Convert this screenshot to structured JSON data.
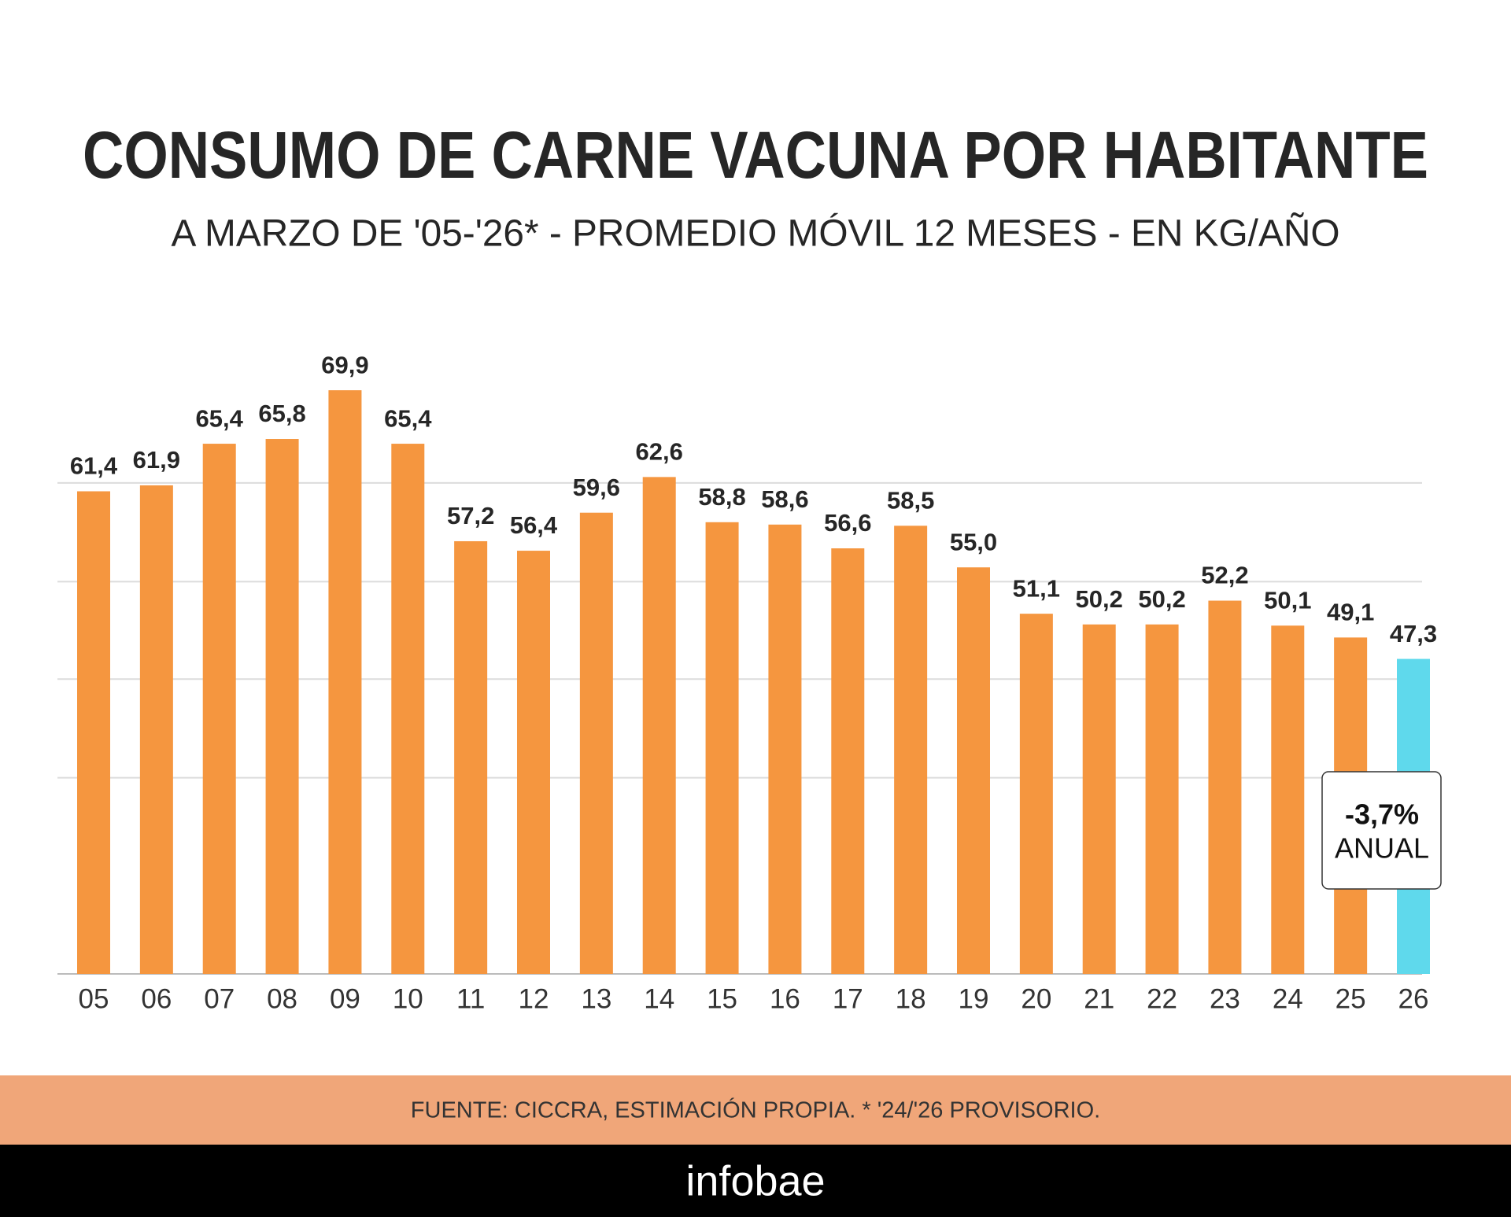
{
  "chart_data": {
    "type": "bar",
    "title": "CONSUMO DE CARNE VACUNA POR HABITANTE",
    "subtitle": "A MARZO DE '05-'26* - PROMEDIO MÓVIL 12 MESES - EN KG/AÑO",
    "categories": [
      "05",
      "06",
      "07",
      "08",
      "09",
      "10",
      "11",
      "12",
      "13",
      "14",
      "15",
      "16",
      "17",
      "18",
      "19",
      "20",
      "21",
      "22",
      "23",
      "24",
      "25",
      "26"
    ],
    "values": [
      61.4,
      61.9,
      65.4,
      65.8,
      69.9,
      65.4,
      57.2,
      56.4,
      59.6,
      62.6,
      58.8,
      58.6,
      56.6,
      58.5,
      55.0,
      51.1,
      50.2,
      50.2,
      52.2,
      50.1,
      49.1,
      47.3
    ],
    "value_labels": [
      "61,4",
      "61,9",
      "65,4",
      "65,8",
      "69,9",
      "65,4",
      "57,2",
      "56,4",
      "59,6",
      "62,6",
      "58,8",
      "58,6",
      "56,6",
      "58,5",
      "55,0",
      "51,1",
      "50,2",
      "50,2",
      "52,2",
      "50,1",
      "49,1",
      "47,3"
    ],
    "colors": [
      "#f5963f",
      "#f5963f",
      "#f5963f",
      "#f5963f",
      "#f5963f",
      "#f5963f",
      "#f5963f",
      "#f5963f",
      "#f5963f",
      "#f5963f",
      "#f5963f",
      "#f5963f",
      "#f5963f",
      "#f5963f",
      "#f5963f",
      "#f5963f",
      "#f5963f",
      "#f5963f",
      "#f5963f",
      "#f5963f",
      "#f5963f",
      "#5fd9ec"
    ],
    "ylim": [
      20.8,
      75
    ],
    "yticks": [
      37.3,
      45.6,
      53.8,
      62.1
    ],
    "grid": true,
    "annotation": {
      "value_label": "-3,7%",
      "text": "ANUAL"
    },
    "source": "FUENTE: CICCRA, ESTIMACIÓN PROPIA. * '24/'26 PROVISORIO.",
    "brand": "infobae"
  }
}
